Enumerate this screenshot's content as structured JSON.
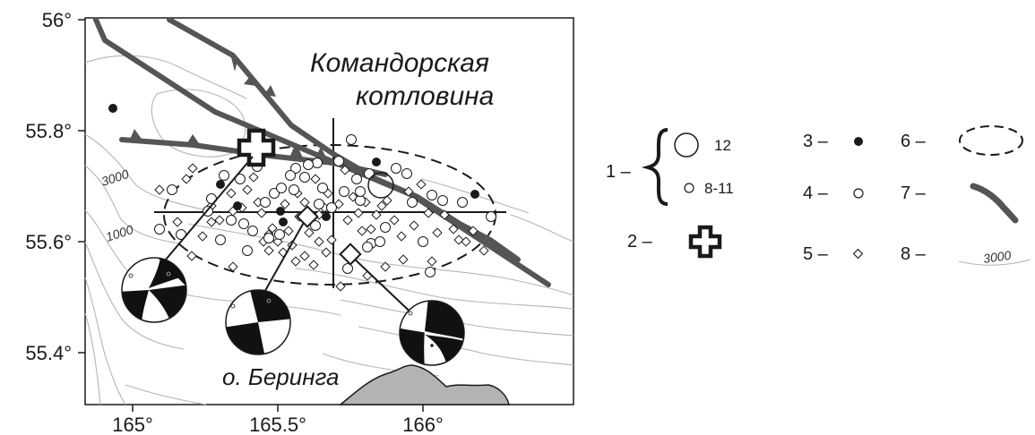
{
  "map": {
    "lon_ticks": [
      "165°",
      "165.5°",
      "166°"
    ],
    "lat_ticks": [
      "56°",
      "55.8°",
      "55.6°",
      "55.4°"
    ],
    "basin_label_line1": "Командорская",
    "basin_label_line2": "котловина",
    "island_label": "о. Беринга",
    "contour_labels": [
      "3000",
      "1000"
    ]
  },
  "legend": {
    "items": [
      {
        "num": "1 –",
        "sub_large": "12",
        "sub_small": "8-11"
      },
      {
        "num": "2 –"
      },
      {
        "num": "3 –"
      },
      {
        "num": "4 –"
      },
      {
        "num": "5 –"
      },
      {
        "num": "6 –"
      },
      {
        "num": "7 –"
      },
      {
        "num": "8 –",
        "contour_value": "3000"
      }
    ]
  },
  "colors": {
    "fault": "#555555",
    "contour": "#b5b5b5",
    "island": "#b3b3b3",
    "ink": "#1a1a1a"
  }
}
